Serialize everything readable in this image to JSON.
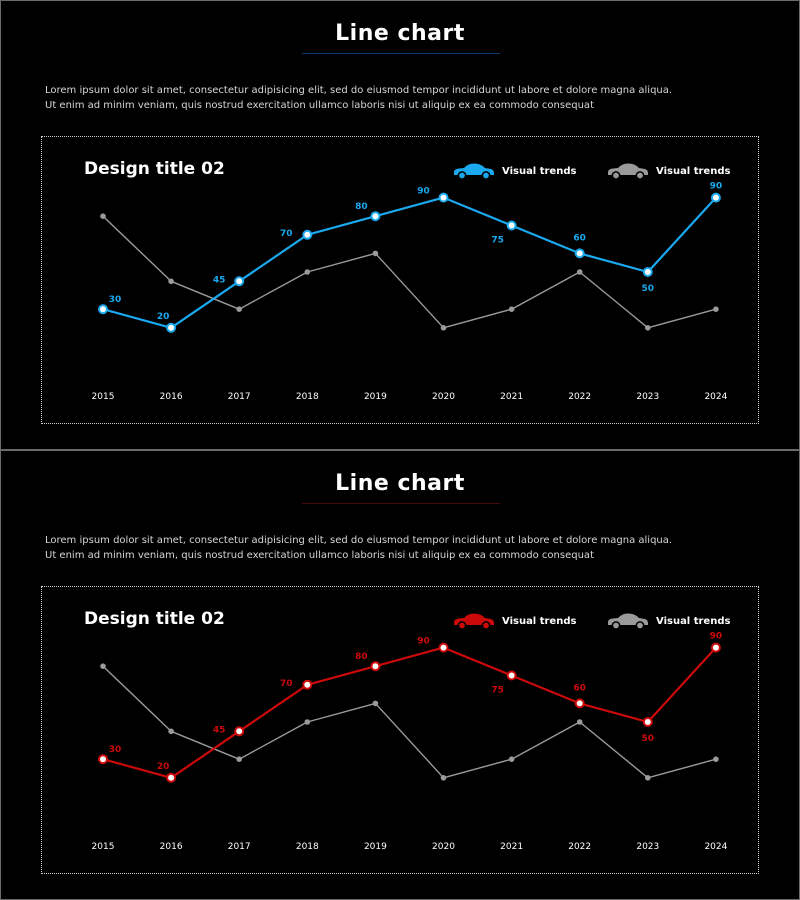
{
  "slides": [
    {
      "title": "Line chart",
      "description": [
        "Lorem ipsum dolor sit amet, consectetur adipisicing elit, sed do eiusmod tempor incididunt ut labore et dolore magna aliqua.",
        "Ut enim ad minim veniam, quis nostrud exercitation ullamco laboris nisi ut aliquip ex ea commodo consequat"
      ],
      "accent_color": "#1aa9ef",
      "underline_color": "#0a3a6a",
      "legend": [
        {
          "label": "Visual trends",
          "icon": "car-icon",
          "color": "#1aa9ef"
        },
        {
          "label": "Visual trends",
          "icon": "car-icon",
          "color": "#9a9a9a"
        }
      ]
    },
    {
      "title": "Line chart",
      "description": [
        "Lorem ipsum dolor sit amet, consectetur adipisicing elit, sed do eiusmod tempor incididunt ut labore et dolore magna aliqua.",
        "Ut enim ad minim veniam, quis nostrud exercitation ullamco laboris nisi ut aliquip ex ea commodo consequat"
      ],
      "accent_color": "#cc0a0a",
      "underline_color": "#4a0a0a",
      "legend": [
        {
          "label": "Visual trends",
          "icon": "car-icon",
          "color": "#cc0a0a"
        },
        {
          "label": "Visual trends",
          "icon": "car-icon",
          "color": "#9a9a9a"
        }
      ]
    }
  ],
  "chart_data": [
    {
      "type": "line",
      "title": "Design title 02",
      "categories": [
        "2015",
        "2016",
        "2017",
        "2018",
        "2019",
        "2020",
        "2021",
        "2022",
        "2023",
        "2024"
      ],
      "series": [
        {
          "name": "Visual trends",
          "color": "#1aa9ef",
          "values": [
            30,
            20,
            45,
            70,
            80,
            90,
            75,
            60,
            50,
            90
          ],
          "labeled": true
        },
        {
          "name": "Visual trends",
          "color": "#9a9a9a",
          "values": [
            80,
            45,
            30,
            50,
            60,
            20,
            30,
            50,
            20,
            30
          ],
          "labeled": false
        }
      ],
      "ylim": [
        0,
        100
      ],
      "grid": false,
      "legend": "top-right"
    },
    {
      "type": "line",
      "title": "Design title 02",
      "categories": [
        "2015",
        "2016",
        "2017",
        "2018",
        "2019",
        "2020",
        "2021",
        "2022",
        "2023",
        "2024"
      ],
      "series": [
        {
          "name": "Visual trends",
          "color": "#cc0a0a",
          "values": [
            30,
            20,
            45,
            70,
            80,
            90,
            75,
            60,
            50,
            90
          ],
          "labeled": true
        },
        {
          "name": "Visual trends",
          "color": "#9a9a9a",
          "values": [
            80,
            45,
            30,
            50,
            60,
            20,
            30,
            50,
            20,
            30
          ],
          "labeled": false
        }
      ],
      "ylim": [
        0,
        100
      ],
      "grid": false,
      "legend": "top-right"
    }
  ]
}
